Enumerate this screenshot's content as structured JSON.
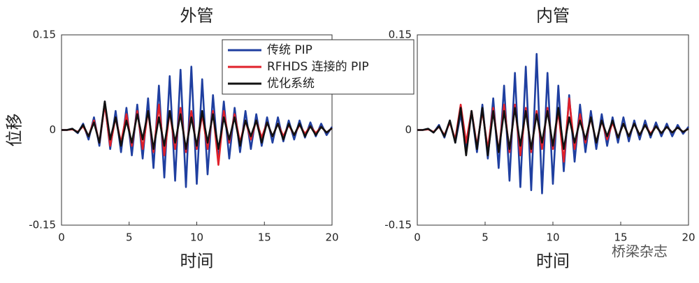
{
  "watermark": "桥梁杂志",
  "chart_data": [
    {
      "type": "line",
      "title": "外管",
      "xlabel": "时间",
      "ylabel": "位移",
      "xlim": [
        0,
        20
      ],
      "xticks": [
        0,
        5,
        10,
        15,
        20
      ],
      "ylim": [
        -0.15,
        0.15
      ],
      "yticks": [
        -0.15,
        0,
        0.15
      ],
      "legend": "top-right",
      "x": [
        0,
        0.4,
        0.8,
        1.2,
        1.6,
        2,
        2.4,
        2.8,
        3.2,
        3.6,
        4,
        4.4,
        4.8,
        5.2,
        5.6,
        6,
        6.4,
        6.8,
        7.2,
        7.6,
        8,
        8.4,
        8.8,
        9.2,
        9.6,
        10,
        10.4,
        10.8,
        11.2,
        11.6,
        12,
        12.4,
        12.8,
        13.2,
        13.6,
        14,
        14.4,
        14.8,
        15.2,
        15.6,
        16,
        16.4,
        16.8,
        17.2,
        17.6,
        18,
        18.4,
        18.8,
        19.2,
        19.6,
        20
      ],
      "series": [
        {
          "name": "传统 PIP",
          "color": "#1f3fa0",
          "values": [
            0,
            0,
            0.002,
            -0.005,
            0.01,
            -0.015,
            0.02,
            -0.025,
            0.045,
            -0.03,
            0.03,
            -0.035,
            0.035,
            -0.04,
            0.04,
            -0.045,
            0.05,
            -0.06,
            0.07,
            -0.075,
            0.085,
            -0.08,
            0.095,
            -0.09,
            0.1,
            -0.085,
            0.08,
            -0.07,
            0.055,
            -0.05,
            0.045,
            -0.045,
            0.035,
            -0.035,
            0.03,
            -0.03,
            0.025,
            -0.025,
            0.02,
            -0.02,
            0.02,
            -0.018,
            0.015,
            -0.015,
            0.015,
            -0.012,
            0.012,
            -0.01,
            0.01,
            -0.008,
            0.005
          ]
        },
        {
          "name": "RFHDS 连接的 PIP",
          "color": "#e0202a",
          "values": [
            0,
            0,
            0.001,
            -0.003,
            0.006,
            -0.01,
            0.015,
            -0.02,
            0.04,
            -0.025,
            0.02,
            -0.02,
            0.025,
            -0.025,
            0.03,
            -0.03,
            0.03,
            -0.035,
            0.04,
            -0.04,
            0.03,
            -0.03,
            0.035,
            -0.035,
            0.03,
            -0.03,
            0.025,
            -0.03,
            0.03,
            -0.055,
            0.03,
            -0.02,
            0.025,
            -0.02,
            0.015,
            -0.015,
            0.015,
            -0.012,
            0.012,
            -0.01,
            0.01,
            -0.01,
            0.008,
            -0.008,
            0.008,
            -0.006,
            0.006,
            -0.005,
            0.005,
            -0.004,
            0.003
          ]
        },
        {
          "name": "优化系统",
          "color": "#111111",
          "values": [
            0,
            0,
            0.002,
            -0.004,
            0.008,
            -0.01,
            0.012,
            -0.02,
            0.045,
            -0.015,
            0.02,
            -0.025,
            0.015,
            -0.02,
            0.025,
            -0.015,
            0.03,
            -0.03,
            0.02,
            -0.025,
            0.03,
            -0.02,
            0.025,
            -0.03,
            0.02,
            -0.025,
            0.03,
            -0.02,
            0.025,
            -0.03,
            0.02,
            -0.015,
            0.02,
            -0.025,
            0.015,
            -0.01,
            0.015,
            -0.02,
            0.012,
            -0.01,
            0.01,
            -0.015,
            0.01,
            -0.008,
            0.01,
            -0.01,
            0.006,
            -0.008,
            0.005,
            -0.004,
            0.003
          ]
        }
      ]
    },
    {
      "type": "line",
      "title": "内管",
      "xlabel": "时间",
      "xlim": [
        0,
        20
      ],
      "xticks": [
        0,
        5,
        10,
        15,
        20
      ],
      "ylim": [
        -0.15,
        0.15
      ],
      "yticks": [
        -0.15,
        0,
        0.15
      ],
      "x": [
        0,
        0.4,
        0.8,
        1.2,
        1.6,
        2,
        2.4,
        2.8,
        3.2,
        3.6,
        4,
        4.4,
        4.8,
        5.2,
        5.6,
        6,
        6.4,
        6.8,
        7.2,
        7.6,
        8,
        8.4,
        8.8,
        9.2,
        9.6,
        10,
        10.4,
        10.8,
        11.2,
        11.6,
        12,
        12.4,
        12.8,
        13.2,
        13.6,
        14,
        14.4,
        14.8,
        15.2,
        15.6,
        16,
        16.4,
        16.8,
        17.2,
        17.6,
        18,
        18.4,
        18.8,
        19.2,
        19.6,
        20
      ],
      "series": [
        {
          "color": "#1f3fa0",
          "values": [
            0,
            0,
            0.002,
            -0.004,
            0.008,
            -0.012,
            0.015,
            -0.02,
            0.025,
            -0.03,
            0.03,
            -0.035,
            0.04,
            -0.045,
            0.05,
            -0.06,
            0.07,
            -0.08,
            0.09,
            -0.09,
            0.1,
            -0.095,
            0.12,
            -0.1,
            0.09,
            -0.085,
            0.07,
            -0.065,
            0.055,
            -0.05,
            0.04,
            -0.035,
            0.03,
            -0.03,
            0.025,
            -0.025,
            0.02,
            -0.02,
            0.02,
            -0.018,
            0.015,
            -0.015,
            0.015,
            -0.012,
            0.012,
            -0.01,
            0.01,
            -0.01,
            0.008,
            -0.006,
            0.005
          ]
        },
        {
          "color": "#e0202a",
          "values": [
            0,
            0,
            0.001,
            -0.003,
            0.005,
            -0.008,
            0.012,
            -0.015,
            0.04,
            -0.02,
            0.03,
            -0.025,
            0.03,
            -0.03,
            0.035,
            -0.035,
            0.04,
            -0.035,
            0.04,
            -0.04,
            0.035,
            -0.035,
            0.03,
            -0.03,
            0.035,
            -0.03,
            0.03,
            -0.05,
            0.05,
            -0.03,
            0.025,
            -0.02,
            0.02,
            -0.02,
            0.015,
            -0.015,
            0.012,
            -0.012,
            0.01,
            -0.01,
            0.01,
            -0.008,
            0.008,
            -0.006,
            0.006,
            -0.005,
            0.005,
            -0.004,
            0.004,
            -0.003,
            0.002
          ]
        },
        {
          "color": "#111111",
          "values": [
            0,
            0,
            0.002,
            -0.004,
            0.006,
            -0.01,
            0.015,
            -0.02,
            0.035,
            -0.04,
            0.03,
            -0.03,
            0.035,
            -0.04,
            0.03,
            -0.035,
            0.03,
            -0.03,
            0.035,
            -0.025,
            0.03,
            -0.03,
            0.025,
            -0.02,
            0.03,
            -0.025,
            0.035,
            -0.03,
            0.02,
            -0.02,
            0.015,
            -0.015,
            0.02,
            -0.02,
            0.015,
            -0.01,
            0.015,
            -0.012,
            0.01,
            -0.01,
            0.01,
            -0.008,
            0.008,
            -0.008,
            0.006,
            -0.005,
            0.005,
            -0.004,
            0.004,
            -0.003,
            0.002
          ]
        }
      ]
    }
  ]
}
